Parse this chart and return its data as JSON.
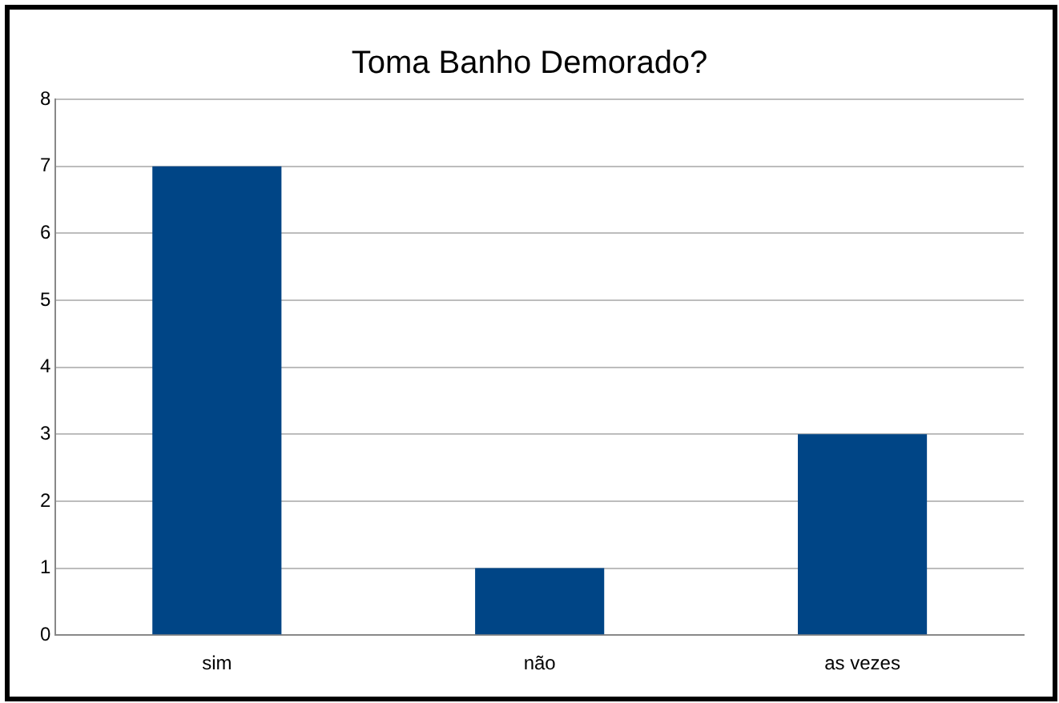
{
  "chart_data": {
    "type": "bar",
    "title": "Toma Banho Demorado?",
    "categories": [
      "sim",
      "não",
      "as vezes"
    ],
    "values": [
      7,
      1,
      3
    ],
    "color": "#004586",
    "ylim": [
      0,
      8
    ],
    "yticks": [
      0,
      1,
      2,
      3,
      4,
      5,
      6,
      7,
      8
    ],
    "grid": "y",
    "legend": false
  }
}
